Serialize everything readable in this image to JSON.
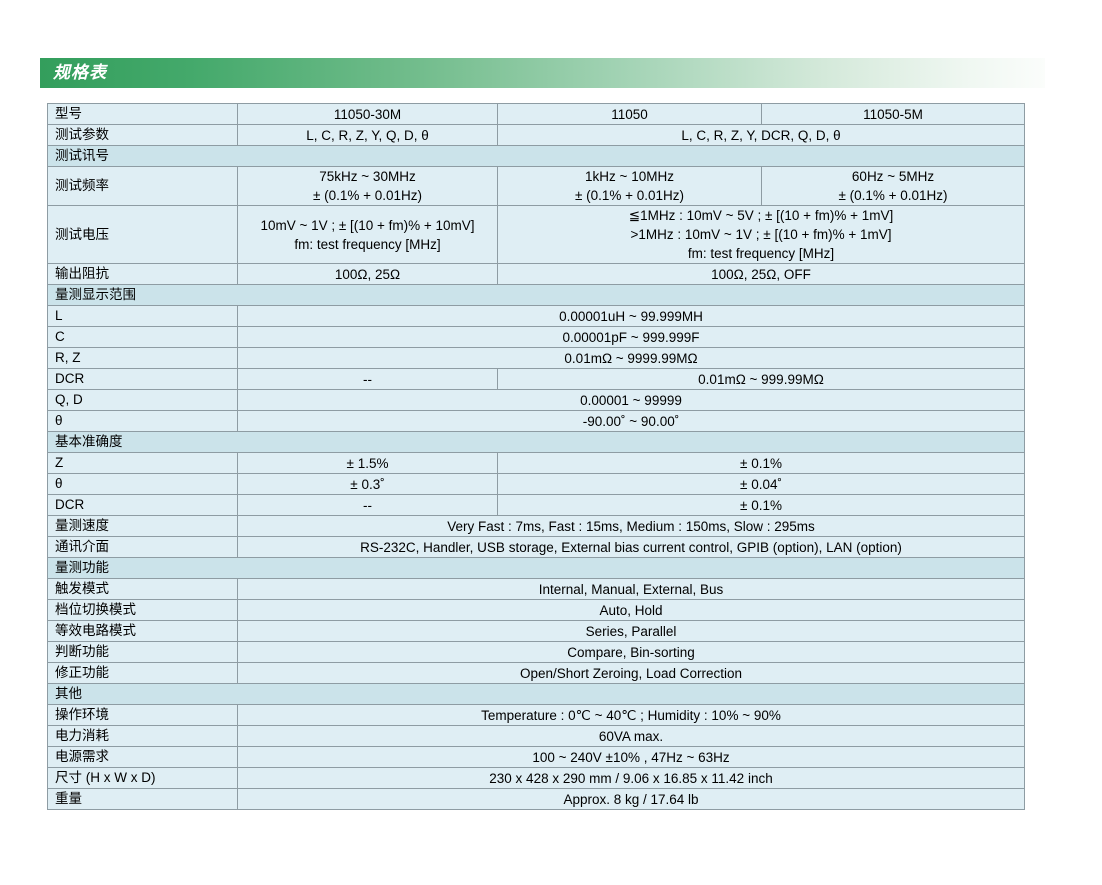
{
  "banner": {
    "title": "规格表"
  },
  "colors": {
    "accent_green": "#339e5c",
    "section_row_bg": "#cbe3ea",
    "cell_bg": "#dfeef4",
    "border": "#8e9ca3"
  },
  "table": {
    "rows": [
      {
        "type": "data",
        "label": "型号",
        "cells": [
          {
            "text": "11050-30M",
            "span": 1
          },
          {
            "text": "11050",
            "span": 1
          },
          {
            "text": "11050-5M",
            "span": 1
          }
        ]
      },
      {
        "type": "data",
        "label": "测试参数",
        "cells": [
          {
            "text": "L, C, R, Z, Y, Q, D, θ",
            "span": 1
          },
          {
            "text": "L, C, R, Z, Y, DCR, Q, D, θ",
            "span": 2
          }
        ]
      },
      {
        "type": "section",
        "label": "测试讯号"
      },
      {
        "type": "data",
        "label": "测试频率",
        "cells": [
          {
            "lines": [
              "75kHz ~ 30MHz",
              "± (0.1% + 0.01Hz)"
            ],
            "span": 1
          },
          {
            "lines": [
              "1kHz ~ 10MHz",
              "± (0.1% + 0.01Hz)"
            ],
            "span": 1
          },
          {
            "lines": [
              "60Hz ~ 5MHz",
              "± (0.1% + 0.01Hz)"
            ],
            "span": 1
          }
        ]
      },
      {
        "type": "data",
        "label": "测试电压",
        "cells": [
          {
            "lines": [
              "10mV ~ 1V ; ± [(10 + fm)% + 10mV]",
              "fm: test frequency [MHz]"
            ],
            "span": 1
          },
          {
            "lines": [
              "≦1MHz : 10mV ~ 5V ; ± [(10 + fm)% + 1mV]",
              ">1MHz : 10mV ~ 1V ; ± [(10 + fm)% + 1mV]",
              "fm: test frequency [MHz]"
            ],
            "span": 2
          }
        ]
      },
      {
        "type": "data",
        "label": "输出阻抗",
        "cells": [
          {
            "text": "100Ω, 25Ω",
            "span": 1
          },
          {
            "text": "100Ω, 25Ω, OFF",
            "span": 2
          }
        ]
      },
      {
        "type": "section",
        "label": "量测显示范围"
      },
      {
        "type": "data",
        "label": "L",
        "cells": [
          {
            "text": "0.00001uH ~ 99.999MH",
            "span": 3
          }
        ]
      },
      {
        "type": "data",
        "label": "C",
        "cells": [
          {
            "text": "0.00001pF ~ 999.999F",
            "span": 3
          }
        ]
      },
      {
        "type": "data",
        "label": "R, Z",
        "cells": [
          {
            "text": "0.01mΩ ~ 9999.99MΩ",
            "span": 3
          }
        ]
      },
      {
        "type": "data",
        "label": "DCR",
        "cells": [
          {
            "text": "--",
            "span": 1
          },
          {
            "text": "0.01mΩ ~ 999.99MΩ",
            "span": 2
          }
        ]
      },
      {
        "type": "data",
        "label": "Q, D",
        "cells": [
          {
            "text": "0.00001 ~ 99999",
            "span": 3
          }
        ]
      },
      {
        "type": "data",
        "label": "θ",
        "cells": [
          {
            "text": "-90.00˚ ~ 90.00˚",
            "span": 3
          }
        ]
      },
      {
        "type": "section",
        "label": "基本准确度"
      },
      {
        "type": "data",
        "label": "Z",
        "cells": [
          {
            "text": "± 1.5%",
            "span": 1
          },
          {
            "text": "± 0.1%",
            "span": 2
          }
        ]
      },
      {
        "type": "data",
        "label": "θ",
        "cells": [
          {
            "text": "± 0.3˚",
            "span": 1
          },
          {
            "text": "± 0.04˚",
            "span": 2
          }
        ]
      },
      {
        "type": "data",
        "label": "DCR",
        "cells": [
          {
            "text": "--",
            "span": 1
          },
          {
            "text": "± 0.1%",
            "span": 2
          }
        ]
      },
      {
        "type": "data",
        "label": "量测速度",
        "cells": [
          {
            "text": "Very Fast : 7ms, Fast : 15ms, Medium : 150ms, Slow : 295ms",
            "span": 3
          }
        ]
      },
      {
        "type": "data",
        "label": "通讯介面",
        "cells": [
          {
            "text": "RS-232C, Handler, USB storage, External bias current control, GPIB (option), LAN (option)",
            "span": 3
          }
        ]
      },
      {
        "type": "section",
        "label": "量测功能"
      },
      {
        "type": "data",
        "label": "触发模式",
        "cells": [
          {
            "text": "Internal, Manual, External, Bus",
            "span": 3
          }
        ]
      },
      {
        "type": "data",
        "label": "档位切换模式",
        "cells": [
          {
            "text": "Auto, Hold",
            "span": 3
          }
        ]
      },
      {
        "type": "data",
        "label": "等效电路模式",
        "cells": [
          {
            "text": "Series, Parallel",
            "span": 3
          }
        ]
      },
      {
        "type": "data",
        "label": "判断功能",
        "cells": [
          {
            "text": "Compare,  Bin-sorting",
            "span": 3
          }
        ]
      },
      {
        "type": "data",
        "label": "修正功能",
        "cells": [
          {
            "text": "Open/Short Zeroing, Load Correction",
            "span": 3
          }
        ]
      },
      {
        "type": "section",
        "label": "其他"
      },
      {
        "type": "data",
        "label": "操作环境",
        "cells": [
          {
            "text": "Temperature : 0℃ ~ 40℃ ; Humidity : 10% ~ 90%",
            "span": 3
          }
        ]
      },
      {
        "type": "data",
        "label": "电力消耗",
        "cells": [
          {
            "text": "60VA max.",
            "span": 3
          }
        ]
      },
      {
        "type": "data",
        "label": "电源需求",
        "cells": [
          {
            "text": "100 ~ 240V ±10% , 47Hz ~ 63Hz",
            "span": 3
          }
        ]
      },
      {
        "type": "data",
        "label": "尺寸 (H x W x D)",
        "cells": [
          {
            "text": "230 x 428 x 290 mm / 9.06 x 16.85 x 11.42 inch",
            "span": 3
          }
        ]
      },
      {
        "type": "data",
        "label": "重量",
        "cells": [
          {
            "text": "Approx. 8 kg / 17.64 lb",
            "span": 3
          }
        ]
      }
    ]
  }
}
